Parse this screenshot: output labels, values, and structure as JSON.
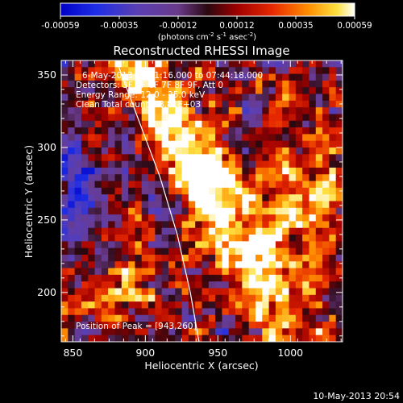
{
  "colorbar": {
    "tick_labels": [
      "-0.00059",
      "-0.00035",
      "-0.00012",
      "0.00012",
      "0.00035",
      "0.00059"
    ],
    "units": "(photons cm",
    "units_exp1": "-2",
    "units_mid": "s",
    "units_exp2": "-1",
    "units_end": "asec",
    "units_exp3": "-2",
    "units_close": ")",
    "range": [
      -0.00059,
      0.00059
    ]
  },
  "image_panel": {
    "title": "Reconstructed RHESSI Image",
    "info_lines": [
      "6-May-2013 07:41:16.000 to 07:44:18.000",
      "Detectors: 3F 5F 6F 7F 8F 9F, Att 0",
      "Energy Range: 12.0 - 25.0 keV",
      "Clean     Total counts: 8.81E+03"
    ],
    "peak_label": "Position of Peak = [943,260]",
    "timestamp": "10-May-2013 20:54"
  },
  "chart_data": {
    "type": "heatmap",
    "title": "Reconstructed RHESSI Image",
    "xlabel": "Heliocentric X (arcsec)",
    "ylabel": "Heliocentric Y (arcsec)",
    "xlim": [
      842,
      1036
    ],
    "ylim": [
      166,
      360
    ],
    "xticks": [
      850,
      900,
      950,
      1000
    ],
    "yticks": [
      200,
      250,
      300,
      350
    ],
    "value_range": [
      -0.00059,
      0.00059
    ],
    "peak": [
      943,
      260
    ],
    "limb_curve": [
      [
        880,
        360
      ],
      [
        895,
        320
      ],
      [
        910,
        280
      ],
      [
        922,
        240
      ],
      [
        931,
        200
      ],
      [
        937,
        166
      ]
    ],
    "grid_cols": 42,
    "grid_rows": 42
  },
  "colors": {
    "background": "#000000",
    "foreground": "#ffffff"
  }
}
